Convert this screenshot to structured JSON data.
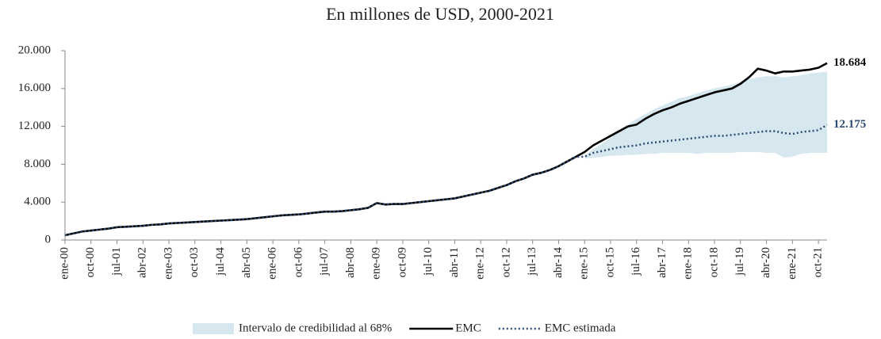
{
  "chart_data": {
    "type": "line",
    "title": "En millones de USD, 2000-2021",
    "categories": [
      "ene-00",
      null,
      null,
      "oct-00",
      null,
      null,
      "jul-01",
      null,
      null,
      "abr-02",
      null,
      null,
      "ene-03",
      null,
      null,
      "oct-03",
      null,
      null,
      "jul-04",
      null,
      null,
      "abr-05",
      null,
      null,
      "ene-06",
      null,
      null,
      "oct-06",
      null,
      null,
      "jul-07",
      null,
      null,
      "abr-08",
      null,
      null,
      "ene-09",
      null,
      null,
      "oct-09",
      null,
      null,
      "jul-10",
      null,
      null,
      "abr-11",
      null,
      null,
      "ene-12",
      null,
      null,
      "oct-12",
      null,
      null,
      "jul-13",
      null,
      null,
      "abr-14",
      null,
      null,
      "ene-15",
      null,
      null,
      "oct-15",
      null,
      null,
      "jul-16",
      null,
      null,
      "abr-17",
      null,
      null,
      "ene-18",
      null,
      null,
      "oct-18",
      null,
      null,
      "jul-19",
      null,
      null,
      "abr-20",
      null,
      null,
      "ene-21",
      null,
      null,
      "oct-21",
      null
    ],
    "band": {
      "name": "Intervalo de credibilidad al 68%",
      "color": "#d7e7ef",
      "lower": [
        null,
        null,
        null,
        null,
        null,
        null,
        null,
        null,
        null,
        null,
        null,
        null,
        null,
        null,
        null,
        null,
        null,
        null,
        null,
        null,
        null,
        null,
        null,
        null,
        null,
        null,
        null,
        null,
        null,
        null,
        null,
        null,
        null,
        null,
        null,
        null,
        null,
        null,
        null,
        null,
        null,
        null,
        null,
        null,
        null,
        null,
        null,
        null,
        null,
        null,
        null,
        null,
        null,
        null,
        null,
        null,
        null,
        null,
        null,
        null,
        8600,
        8700,
        8800,
        8900,
        8900,
        9000,
        9000,
        9100,
        9100,
        9200,
        9200,
        9200,
        9200,
        9100,
        9200,
        9200,
        9200,
        9200,
        9300,
        9300,
        9300,
        9200,
        9200,
        8700,
        8800,
        9100,
        9200,
        9200,
        9200
      ],
      "upper": [
        null,
        null,
        null,
        null,
        null,
        null,
        null,
        null,
        null,
        null,
        null,
        null,
        null,
        null,
        null,
        null,
        null,
        null,
        null,
        null,
        null,
        null,
        null,
        null,
        null,
        null,
        null,
        null,
        null,
        null,
        null,
        null,
        null,
        null,
        null,
        null,
        null,
        null,
        null,
        null,
        null,
        null,
        null,
        null,
        null,
        null,
        null,
        null,
        null,
        null,
        null,
        null,
        null,
        null,
        null,
        null,
        null,
        null,
        null,
        null,
        8900,
        9600,
        10200,
        10800,
        11600,
        12200,
        12800,
        13300,
        13800,
        14200,
        14600,
        15000,
        15200,
        15500,
        15800,
        16000,
        16200,
        16400,
        16700,
        17000,
        17200,
        17300,
        17300,
        17200,
        17300,
        17400,
        17600,
        17700,
        17800
      ]
    },
    "series": [
      {
        "name": "EMC",
        "color": "#000000",
        "dashed": false,
        "values": [
          500,
          700,
          900,
          1000,
          1100,
          1200,
          1350,
          1400,
          1450,
          1500,
          1600,
          1650,
          1750,
          1800,
          1850,
          1900,
          1950,
          2000,
          2050,
          2100,
          2150,
          2200,
          2300,
          2400,
          2500,
          2600,
          2650,
          2700,
          2800,
          2900,
          3000,
          3000,
          3050,
          3150,
          3250,
          3400,
          3900,
          3750,
          3800,
          3800,
          3900,
          4000,
          4100,
          4200,
          4300,
          4400,
          4600,
          4800,
          5000,
          5200,
          5500,
          5800,
          6200,
          6500,
          6900,
          7100,
          7400,
          7800,
          8300,
          8800,
          9300,
          10000,
          10500,
          11000,
          11500,
          12000,
          12200,
          12800,
          13300,
          13700,
          14000,
          14400,
          14700,
          15000,
          15300,
          15600,
          15800,
          16000,
          16500,
          17200,
          18100,
          17900,
          17600,
          17800,
          17800,
          17900,
          18000,
          18200,
          18684
        ],
        "value_labels": [
          null,
          null,
          null,
          null,
          null,
          null,
          null,
          null,
          null,
          null,
          null,
          null,
          null,
          null,
          null,
          null,
          null,
          null,
          null,
          null,
          null,
          null,
          null,
          null,
          null,
          null,
          null,
          null,
          null,
          null,
          null,
          null,
          null,
          null,
          null,
          null,
          null,
          null,
          null,
          null,
          null,
          null,
          null,
          null,
          null,
          null,
          null,
          null,
          null,
          null,
          null,
          null,
          null,
          null,
          null,
          null,
          null,
          null,
          null,
          null,
          null,
          null,
          null,
          null,
          null,
          null,
          null,
          null,
          null,
          null,
          null,
          null,
          null,
          null,
          null,
          null,
          null,
          null,
          null,
          null,
          null,
          null,
          null,
          null,
          null,
          null,
          null,
          null,
          "18.684"
        ]
      },
      {
        "name": "EMC estimada",
        "color": "#2b4c74",
        "dashed": true,
        "values": [
          500,
          700,
          900,
          1000,
          1100,
          1200,
          1350,
          1400,
          1450,
          1500,
          1600,
          1650,
          1750,
          1800,
          1850,
          1900,
          1950,
          2000,
          2050,
          2100,
          2150,
          2200,
          2300,
          2400,
          2500,
          2600,
          2650,
          2700,
          2800,
          2900,
          3000,
          3000,
          3050,
          3150,
          3250,
          3400,
          3900,
          3750,
          3800,
          3800,
          3900,
          4000,
          4100,
          4200,
          4300,
          4400,
          4600,
          4800,
          5000,
          5200,
          5500,
          5800,
          6200,
          6500,
          6900,
          7100,
          7400,
          7800,
          8300,
          8800,
          8800,
          9200,
          9400,
          9600,
          9800,
          9900,
          10000,
          10200,
          10300,
          10400,
          10500,
          10600,
          10700,
          10800,
          10900,
          11000,
          11000,
          11100,
          11200,
          11300,
          11400,
          11500,
          11500,
          11300,
          11200,
          11400,
          11500,
          11600,
          12175
        ],
        "value_labels": [
          null,
          null,
          null,
          null,
          null,
          null,
          null,
          null,
          null,
          null,
          null,
          null,
          null,
          null,
          null,
          null,
          null,
          null,
          null,
          null,
          null,
          null,
          null,
          null,
          null,
          null,
          null,
          null,
          null,
          null,
          null,
          null,
          null,
          null,
          null,
          null,
          null,
          null,
          null,
          null,
          null,
          null,
          null,
          null,
          null,
          null,
          null,
          null,
          null,
          null,
          null,
          null,
          null,
          null,
          null,
          null,
          null,
          null,
          null,
          null,
          null,
          null,
          null,
          null,
          null,
          null,
          null,
          null,
          null,
          null,
          null,
          null,
          null,
          null,
          null,
          null,
          null,
          null,
          null,
          null,
          null,
          null,
          null,
          null,
          null,
          null,
          null,
          null,
          "12.175"
        ]
      }
    ],
    "ylim": [
      0,
      20000
    ],
    "yticks": [
      {
        "value": 0,
        "label": "0"
      },
      {
        "value": 4000,
        "label": "4.000"
      },
      {
        "value": 8000,
        "label": "8.000"
      },
      {
        "value": 12000,
        "label": "12.000"
      },
      {
        "value": 16000,
        "label": "16.000"
      },
      {
        "value": 20000,
        "label": "20.000"
      }
    ],
    "grid": false
  }
}
